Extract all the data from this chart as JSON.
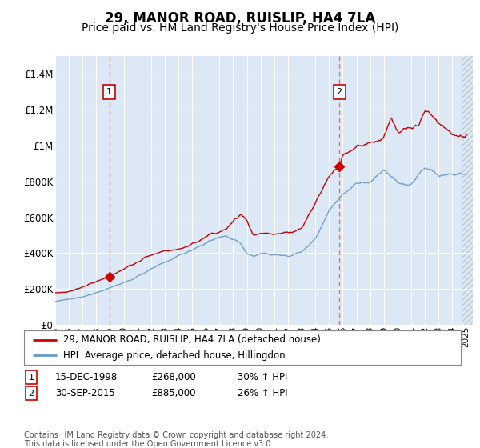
{
  "title": "29, MANOR ROAD, RUISLIP, HA4 7LA",
  "subtitle": "Price paid vs. HM Land Registry's House Price Index (HPI)",
  "title_fontsize": 12,
  "subtitle_fontsize": 10,
  "bg_color": "#dce8f5",
  "grid_color": "#ffffff",
  "sale1_price": 268000,
  "sale1_label": "1",
  "sale2_price": 885000,
  "sale2_label": "2",
  "line1_color": "#cc0000",
  "line2_color": "#6699cc",
  "marker_color": "#cc0000",
  "legend1": "29, MANOR ROAD, RUISLIP, HA4 7LA (detached house)",
  "legend2": "HPI: Average price, detached house, Hillingdon",
  "footer": "Contains HM Land Registry data © Crown copyright and database right 2024.\nThis data is licensed under the Open Government Licence v3.0.",
  "ylim": [
    0,
    1500000
  ],
  "yticks": [
    0,
    200000,
    400000,
    600000,
    800000,
    1000000,
    1200000,
    1400000
  ],
  "ytick_labels": [
    "£0",
    "£200K",
    "£400K",
    "£600K",
    "£800K",
    "£1M",
    "£1.2M",
    "£1.4M"
  ],
  "sale1_year_float": 1998.958,
  "sale2_year_float": 2015.75,
  "xmin": 1995.0,
  "xmax": 2025.5
}
